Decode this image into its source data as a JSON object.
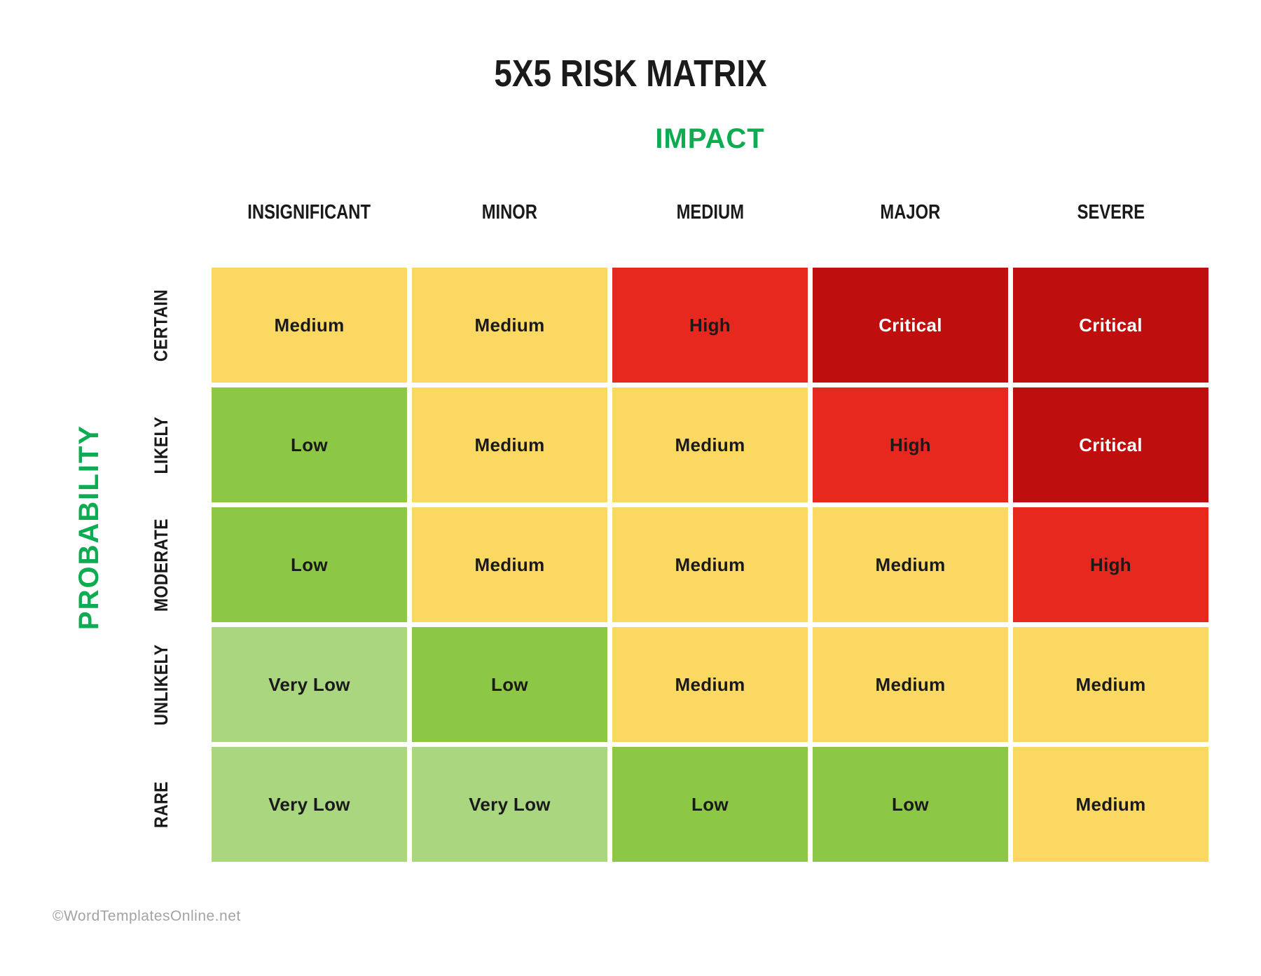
{
  "page": {
    "title": "5X5 RISK MATRIX",
    "impact_axis_label": "IMPACT",
    "probability_axis_label": "PROBABILITY",
    "footer_credit": "©WordTemplatesOnline.net"
  },
  "columns": [
    "INSIGNIFICANT",
    "MINOR",
    "MEDIUM",
    "MAJOR",
    "SEVERE"
  ],
  "rows": [
    "CERTAIN",
    "LIKELY",
    "MODERATE",
    "UNLIKELY",
    "RARE"
  ],
  "levels": {
    "very_low": {
      "label": "Very Low",
      "bg": "#A9D67E",
      "text": "#1A1A1A"
    },
    "low": {
      "label": "Low",
      "bg": "#8CC746",
      "text": "#1A1A1A"
    },
    "medium": {
      "label": "Medium",
      "bg": "#FAD862",
      "text": "#1A1A1A"
    },
    "high": {
      "label": "High",
      "bg": "#E6281E",
      "text": "#1A1A1A"
    },
    "critical": {
      "label": "Critical",
      "bg": "#BE0E0E",
      "text": "#FFFFFF"
    }
  },
  "matrix": [
    [
      "medium",
      "medium",
      "high",
      "critical",
      "critical"
    ],
    [
      "low",
      "medium",
      "medium",
      "high",
      "critical"
    ],
    [
      "low",
      "medium",
      "medium",
      "medium",
      "high"
    ],
    [
      "very_low",
      "low",
      "medium",
      "medium",
      "medium"
    ],
    [
      "very_low",
      "very_low",
      "low",
      "low",
      "medium"
    ]
  ],
  "colors": {
    "accent_green": "#0EAC52",
    "title_text": "#1A1A1A",
    "footer_text": "#A3A3A3",
    "page_bg": "#FFFFFF"
  }
}
